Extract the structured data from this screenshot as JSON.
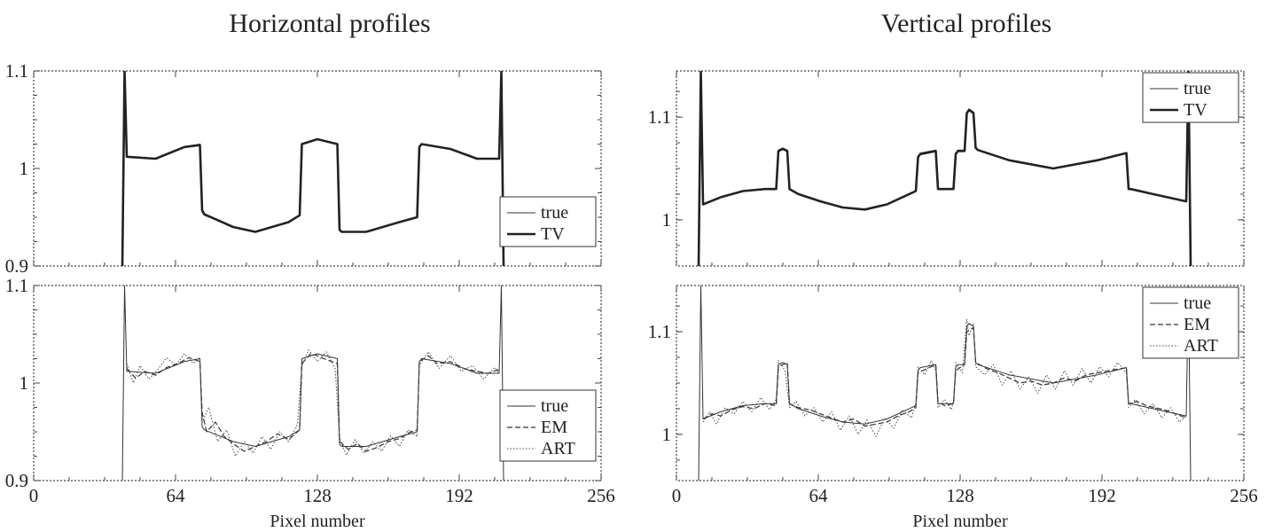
{
  "chart_data": [
    {
      "type": "line",
      "column_title": "Horizontal profiles",
      "xlim": [
        0,
        256
      ],
      "ylim": [
        0.9,
        1.1
      ],
      "xticks": [
        0,
        64,
        128,
        192,
        256
      ],
      "yticks": [
        0.9,
        1,
        1.1
      ],
      "ytick_labels": [
        "0.9",
        "1",
        "1.1"
      ],
      "xlabel": "",
      "legend_position": "lower-right",
      "series": [
        {
          "name": "true",
          "style": "thin",
          "x": [
            40,
            41,
            42,
            55,
            68,
            75,
            76,
            77,
            90,
            100,
            115,
            120,
            121,
            128,
            137,
            138,
            139,
            150,
            165,
            173,
            174,
            175,
            188,
            200,
            210,
            211,
            212
          ],
          "y": [
            0.9,
            1.1,
            1.012,
            1.01,
            1.022,
            1.025,
            0.955,
            0.952,
            0.94,
            0.935,
            0.945,
            0.952,
            1.025,
            1.03,
            1.025,
            0.937,
            0.935,
            0.935,
            0.945,
            0.95,
            1.022,
            1.025,
            1.02,
            1.01,
            1.01,
            1.1,
            0.9
          ]
        },
        {
          "name": "TV",
          "style": "thick",
          "x": [
            40,
            41,
            42,
            55,
            68,
            75,
            76,
            77,
            90,
            100,
            115,
            120,
            121,
            128,
            137,
            138,
            139,
            150,
            165,
            173,
            174,
            175,
            188,
            200,
            210,
            211,
            212
          ],
          "y": [
            0.9,
            1.1,
            1.012,
            1.01,
            1.022,
            1.024,
            0.957,
            0.953,
            0.94,
            0.935,
            0.945,
            0.952,
            1.025,
            1.03,
            1.025,
            0.937,
            0.935,
            0.935,
            0.945,
            0.95,
            1.022,
            1.025,
            1.02,
            1.01,
            1.01,
            1.1,
            0.9
          ]
        }
      ]
    },
    {
      "type": "line",
      "xlim": [
        0,
        256
      ],
      "ylim": [
        0.9,
        1.1
      ],
      "xticks": [
        0,
        64,
        128,
        192,
        256
      ],
      "yticks": [
        0.9,
        1,
        1.1
      ],
      "ytick_labels": [
        "0.9",
        "1",
        "1.1"
      ],
      "xlabel": "Pixel number",
      "legend_position": "lower-right",
      "series": [
        {
          "name": "true",
          "style": "thin",
          "x": [
            40,
            41,
            42,
            55,
            68,
            75,
            76,
            77,
            90,
            100,
            115,
            120,
            121,
            128,
            137,
            138,
            139,
            150,
            165,
            173,
            174,
            175,
            188,
            200,
            210,
            211,
            212
          ],
          "y": [
            0.9,
            1.1,
            1.012,
            1.01,
            1.022,
            1.025,
            0.955,
            0.952,
            0.94,
            0.935,
            0.945,
            0.952,
            1.025,
            1.03,
            1.025,
            0.937,
            0.935,
            0.935,
            0.945,
            0.95,
            1.022,
            1.025,
            1.02,
            1.01,
            1.01,
            1.1,
            0.9
          ]
        },
        {
          "name": "EM",
          "style": "dashed",
          "x": [
            42,
            46,
            50,
            55,
            60,
            65,
            70,
            75,
            76,
            78,
            82,
            86,
            90,
            95,
            100,
            105,
            110,
            115,
            120,
            121,
            125,
            128,
            132,
            137,
            138,
            142,
            146,
            150,
            155,
            160,
            165,
            170,
            173,
            174,
            178,
            182,
            188,
            194,
            200,
            205,
            210
          ],
          "y": [
            1.015,
            1.005,
            1.012,
            1.008,
            1.016,
            1.02,
            1.026,
            1.022,
            0.97,
            0.95,
            0.96,
            0.945,
            0.938,
            0.93,
            0.935,
            0.94,
            0.948,
            0.942,
            0.952,
            1.02,
            1.03,
            1.028,
            1.024,
            1.02,
            0.94,
            0.932,
            0.938,
            0.93,
            0.934,
            0.94,
            0.943,
            0.95,
            0.952,
            1.022,
            1.028,
            1.02,
            1.022,
            1.015,
            1.012,
            1.01,
            1.014
          ]
        },
        {
          "name": "ART",
          "style": "dotted",
          "x": [
            42,
            45,
            48,
            52,
            56,
            60,
            64,
            68,
            72,
            75,
            76,
            79,
            83,
            87,
            91,
            95,
            99,
            103,
            107,
            111,
            115,
            119,
            121,
            124,
            128,
            132,
            136,
            138,
            141,
            145,
            149,
            153,
            157,
            161,
            165,
            169,
            173,
            174,
            178,
            183,
            188,
            193,
            198,
            203,
            208,
            210
          ],
          "y": [
            1.02,
            1.0,
            1.018,
            1.004,
            1.014,
            1.026,
            1.018,
            1.03,
            1.02,
            1.026,
            0.96,
            0.975,
            0.94,
            0.952,
            0.925,
            0.94,
            0.928,
            0.945,
            0.932,
            0.95,
            0.94,
            0.958,
            1.018,
            1.034,
            1.022,
            1.032,
            1.015,
            0.944,
            0.926,
            0.942,
            0.928,
            0.94,
            0.93,
            0.946,
            0.935,
            0.952,
            0.945,
            1.018,
            1.032,
            1.015,
            1.028,
            1.012,
            1.018,
            1.004,
            1.016,
            1.01
          ]
        }
      ]
    },
    {
      "type": "line",
      "column_title": "Vertical profiles",
      "xlim": [
        0,
        256
      ],
      "ylim": [
        0.955,
        1.145
      ],
      "xticks": [
        0,
        64,
        128,
        192,
        256
      ],
      "yticks": [
        1,
        1.1
      ],
      "ytick_labels": [
        "1",
        "1.1"
      ],
      "xlabel": "",
      "legend_position": "top-right",
      "series": [
        {
          "name": "true",
          "style": "thin",
          "x": [
            10,
            11,
            12,
            20,
            30,
            40,
            45,
            46,
            48,
            50,
            51,
            55,
            65,
            75,
            85,
            95,
            105,
            108,
            109,
            110,
            117,
            118,
            119,
            125,
            126,
            127,
            130,
            131,
            132,
            134,
            135,
            136,
            150,
            170,
            190,
            203,
            204,
            205,
            215,
            230,
            231,
            232
          ],
          "y": [
            0.955,
            1.145,
            1.015,
            1.022,
            1.028,
            1.03,
            1.03,
            1.068,
            1.07,
            1.068,
            1.03,
            1.025,
            1.018,
            1.012,
            1.01,
            1.015,
            1.025,
            1.028,
            1.062,
            1.065,
            1.068,
            1.03,
            1.03,
            1.03,
            1.065,
            1.068,
            1.068,
            1.105,
            1.108,
            1.105,
            1.07,
            1.068,
            1.058,
            1.05,
            1.058,
            1.065,
            1.03,
            1.03,
            1.025,
            1.018,
            1.145,
            0.955
          ]
        },
        {
          "name": "TV",
          "style": "thick",
          "x": [
            10,
            11,
            12,
            20,
            30,
            40,
            45,
            46,
            48,
            50,
            51,
            55,
            65,
            75,
            85,
            95,
            105,
            108,
            109,
            110,
            117,
            118,
            119,
            125,
            126,
            127,
            130,
            131,
            132,
            134,
            135,
            136,
            150,
            170,
            190,
            203,
            204,
            205,
            215,
            230,
            231,
            232
          ],
          "y": [
            0.955,
            1.145,
            1.015,
            1.022,
            1.028,
            1.03,
            1.03,
            1.067,
            1.069,
            1.067,
            1.03,
            1.025,
            1.018,
            1.012,
            1.01,
            1.015,
            1.025,
            1.028,
            1.061,
            1.064,
            1.067,
            1.03,
            1.03,
            1.03,
            1.064,
            1.067,
            1.067,
            1.104,
            1.107,
            1.104,
            1.07,
            1.068,
            1.058,
            1.05,
            1.058,
            1.065,
            1.03,
            1.03,
            1.025,
            1.018,
            1.145,
            0.955
          ]
        }
      ]
    },
    {
      "type": "line",
      "xlim": [
        0,
        256
      ],
      "ylim": [
        0.955,
        1.145
      ],
      "xticks": [
        0,
        64,
        128,
        192,
        256
      ],
      "yticks": [
        1,
        1.1
      ],
      "ytick_labels": [
        "1",
        "1.1"
      ],
      "xlabel": "Pixel number",
      "legend_position": "top-right",
      "series": [
        {
          "name": "true",
          "style": "thin",
          "x": [
            10,
            11,
            12,
            20,
            30,
            40,
            45,
            46,
            48,
            50,
            51,
            55,
            65,
            75,
            85,
            95,
            105,
            108,
            109,
            110,
            117,
            118,
            119,
            125,
            126,
            127,
            130,
            131,
            132,
            134,
            135,
            136,
            150,
            170,
            190,
            203,
            204,
            205,
            215,
            230,
            231,
            232
          ],
          "y": [
            0.955,
            1.145,
            1.015,
            1.022,
            1.028,
            1.03,
            1.03,
            1.068,
            1.07,
            1.068,
            1.03,
            1.025,
            1.018,
            1.012,
            1.01,
            1.015,
            1.025,
            1.028,
            1.062,
            1.065,
            1.068,
            1.03,
            1.03,
            1.03,
            1.065,
            1.068,
            1.068,
            1.105,
            1.108,
            1.105,
            1.07,
            1.068,
            1.058,
            1.05,
            1.058,
            1.065,
            1.03,
            1.03,
            1.025,
            1.018,
            1.145,
            0.955
          ]
        },
        {
          "name": "EM",
          "style": "dashed",
          "x": [
            12,
            16,
            20,
            25,
            30,
            35,
            40,
            45,
            46,
            50,
            51,
            55,
            60,
            65,
            70,
            75,
            80,
            85,
            90,
            95,
            100,
            105,
            108,
            109,
            113,
            117,
            118,
            121,
            125,
            126,
            130,
            131,
            134,
            135,
            140,
            145,
            150,
            155,
            160,
            165,
            170,
            175,
            180,
            185,
            190,
            195,
            203,
            204,
            208,
            212,
            216,
            220,
            225,
            230
          ],
          "y": [
            1.015,
            1.02,
            1.018,
            1.024,
            1.027,
            1.025,
            1.03,
            1.028,
            1.066,
            1.07,
            1.03,
            1.026,
            1.024,
            1.02,
            1.016,
            1.012,
            1.015,
            1.008,
            1.01,
            1.012,
            1.018,
            1.022,
            1.026,
            1.06,
            1.064,
            1.068,
            1.032,
            1.028,
            1.03,
            1.062,
            1.068,
            1.1,
            1.104,
            1.07,
            1.064,
            1.06,
            1.055,
            1.05,
            1.052,
            1.048,
            1.05,
            1.055,
            1.052,
            1.058,
            1.06,
            1.062,
            1.065,
            1.03,
            1.032,
            1.028,
            1.026,
            1.024,
            1.02,
            1.016
          ]
        },
        {
          "name": "ART",
          "style": "dotted",
          "x": [
            12,
            15,
            18,
            22,
            26,
            30,
            34,
            38,
            42,
            45,
            46,
            49,
            51,
            54,
            58,
            62,
            66,
            70,
            74,
            78,
            82,
            86,
            90,
            94,
            98,
            102,
            106,
            108,
            109,
            112,
            115,
            117,
            118,
            121,
            124,
            125,
            126,
            129,
            131,
            132,
            134,
            135,
            139,
            143,
            147,
            151,
            155,
            159,
            163,
            167,
            171,
            175,
            179,
            183,
            187,
            191,
            195,
            199,
            203,
            204,
            207,
            211,
            215,
            219,
            223,
            227,
            230
          ],
          "y": [
            1.012,
            1.022,
            1.01,
            1.026,
            1.02,
            1.032,
            1.022,
            1.036,
            1.024,
            1.034,
            1.072,
            1.062,
            1.026,
            1.032,
            1.018,
            1.026,
            1.012,
            1.022,
            1.004,
            1.018,
            1.0,
            1.014,
            0.998,
            1.016,
            1.006,
            1.024,
            1.016,
            1.03,
            1.066,
            1.058,
            1.072,
            1.062,
            1.026,
            1.034,
            1.024,
            1.032,
            1.07,
            1.06,
            1.112,
            1.096,
            1.108,
            1.066,
            1.058,
            1.068,
            1.048,
            1.062,
            1.044,
            1.056,
            1.04,
            1.058,
            1.044,
            1.062,
            1.048,
            1.064,
            1.05,
            1.066,
            1.056,
            1.07,
            1.06,
            1.026,
            1.034,
            1.02,
            1.03,
            1.016,
            1.026,
            1.012,
            1.018
          ]
        }
      ]
    }
  ]
}
